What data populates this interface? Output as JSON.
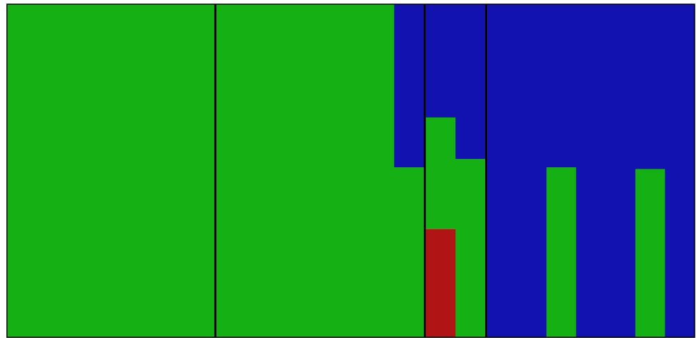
{
  "chart_data": {
    "type": "bar",
    "title": "",
    "xlabel": "",
    "ylabel": "",
    "ylim": [
      0,
      1
    ],
    "grid": false,
    "legend": "none",
    "colors": {
      "green": "#14b014",
      "blue": "#1212b0",
      "red": "#b01414",
      "separator": "#000000"
    },
    "groups": [
      {
        "bars": [
          {
            "segments": [
              {
                "color": "green",
                "value": 1.0
              }
            ]
          },
          {
            "segments": [
              {
                "color": "green",
                "value": 1.0
              }
            ]
          },
          {
            "segments": [
              {
                "color": "green",
                "value": 1.0
              }
            ]
          },
          {
            "segments": [
              {
                "color": "green",
                "value": 1.0
              }
            ]
          },
          {
            "segments": [
              {
                "color": "green",
                "value": 1.0
              }
            ]
          },
          {
            "segments": [
              {
                "color": "green",
                "value": 1.0
              }
            ]
          },
          {
            "segments": [
              {
                "color": "green",
                "value": 1.0
              }
            ]
          }
        ]
      },
      {
        "bars": [
          {
            "segments": [
              {
                "color": "green",
                "value": 1.0
              }
            ]
          },
          {
            "segments": [
              {
                "color": "green",
                "value": 1.0
              }
            ]
          },
          {
            "segments": [
              {
                "color": "green",
                "value": 1.0
              }
            ]
          },
          {
            "segments": [
              {
                "color": "green",
                "value": 1.0
              }
            ]
          },
          {
            "segments": [
              {
                "color": "green",
                "value": 1.0
              }
            ]
          },
          {
            "segments": [
              {
                "color": "green",
                "value": 1.0
              },
              {
                "color": "blue",
                "value": 0.0
              }
            ]
          },
          {
            "segments": [
              {
                "color": "green",
                "value": 0.51
              },
              {
                "color": "blue",
                "value": 0.49
              }
            ]
          }
        ]
      },
      {
        "bars": [
          {
            "segments": [
              {
                "color": "red",
                "value": 0.325
              },
              {
                "color": "green",
                "value": 0.335
              },
              {
                "color": "blue",
                "value": 0.34
              }
            ]
          },
          {
            "segments": [
              {
                "color": "green",
                "value": 0.535
              },
              {
                "color": "blue",
                "value": 0.465
              }
            ]
          }
        ]
      },
      {
        "bars": [
          {
            "segments": [
              {
                "color": "blue",
                "value": 1.0
              }
            ]
          },
          {
            "segments": [
              {
                "color": "blue",
                "value": 1.0
              }
            ]
          },
          {
            "segments": [
              {
                "color": "green",
                "value": 0.51
              },
              {
                "color": "blue",
                "value": 0.49
              }
            ]
          },
          {
            "segments": [
              {
                "color": "blue",
                "value": 1.0
              }
            ]
          },
          {
            "segments": [
              {
                "color": "blue",
                "value": 1.0
              }
            ]
          },
          {
            "segments": [
              {
                "color": "green",
                "value": 0.505
              },
              {
                "color": "blue",
                "value": 0.495
              }
            ]
          },
          {
            "segments": [
              {
                "color": "blue",
                "value": 1.0
              }
            ]
          }
        ]
      }
    ]
  }
}
